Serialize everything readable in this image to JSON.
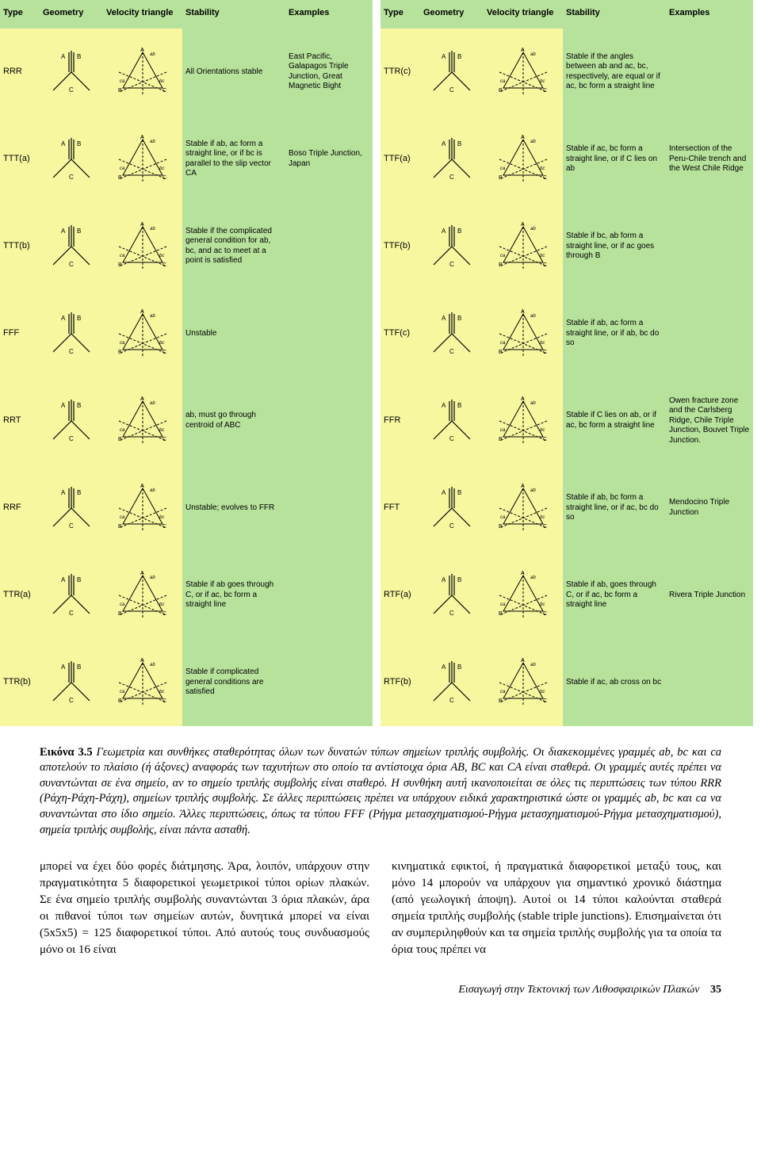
{
  "headers": [
    "Type",
    "Geometry",
    "Velocity triangle",
    "Stability",
    "Examples"
  ],
  "left_rows": [
    {
      "type": "RRR",
      "stability": "All Orientations stable",
      "examples": "East Pacific, Galapagos Triple Junction, Great Magnetic Bight"
    },
    {
      "type": "TTT(a)",
      "stability": "Stable if ab, ac form a straight line, or if bc is parallel to the slip vector CA",
      "examples": "Boso Triple Junction, Japan"
    },
    {
      "type": "TTT(b)",
      "stability": "Stable if the complicated general condition for ab, bc, and ac to meet at a point is satisfied",
      "examples": ""
    },
    {
      "type": "FFF",
      "stability": "Unstable",
      "examples": ""
    },
    {
      "type": "RRT",
      "stability": "ab, must go through centroid of ABC",
      "examples": ""
    },
    {
      "type": "RRF",
      "stability": "Unstable; evolves to FFR",
      "examples": ""
    },
    {
      "type": "TTR(a)",
      "stability": "Stable if ab goes through C, or if ac, bc form a straight line",
      "examples": ""
    },
    {
      "type": "TTR(b)",
      "stability": "Stable if complicated general conditions are satisfied",
      "examples": ""
    }
  ],
  "right_rows": [
    {
      "type": "TTR(c)",
      "stability": "Stable if the angles between ab and ac, bc, respectively, are equal or if ac, bc form a straight line",
      "examples": ""
    },
    {
      "type": "TTF(a)",
      "stability": "Stable if ac, bc form a straight line, or if C lies on ab",
      "examples": "Intersection of the Peru-Chile trench and the West Chile Ridge"
    },
    {
      "type": "TTF(b)",
      "stability": "Stable if bc, ab form a straight line, or if ac goes through B",
      "examples": ""
    },
    {
      "type": "TTF(c)",
      "stability": "Stable if ab, ac form a straight line, or if ab, bc do so",
      "examples": ""
    },
    {
      "type": "FFR",
      "stability": "Stable if C lies on ab, or if ac, bc form a straight line",
      "examples": "Owen fracture zone and the Carlsberg Ridge, Chile Triple Junction, Bouvet Triple Junction."
    },
    {
      "type": "FFT",
      "stability": "Stable if ab, bc form a straight line, or if ac, bc do so",
      "examples": "Mendocino Triple Junction"
    },
    {
      "type": "RTF(a)",
      "stability": "Stable if ab, goes through C, or if ac, bc form a straight line",
      "examples": "Rivera Triple Junction"
    },
    {
      "type": "RTF(b)",
      "stability": "Stable if ac, ab cross on bc",
      "examples": ""
    }
  ],
  "caption": {
    "lead": "Εικόνα 3.5",
    "text": "Γεωμετρία και συνθήκες σταθερότητας όλων των δυνατών τύπων σημείων τριπλής συμβολής. Οι διακεκομμένες γραμμές ab, bc και ca αποτελούν το πλαίσιο (ή άξονες) αναφοράς των ταχυτήτων στο οποίο τα αντίστοιχα όρια AB, BC και CA είναι σταθερά. Οι γραμμές αυτές πρέπει να συναντώνται σε ένα σημείο, αν το σημείο τριπλής συμβολής είναι σταθερό. Η συνθήκη αυτή ικανοποιείται σε όλες τις περιπτώσεις των τύπου RRR (Ράχη-Ράχη-Ράχη), σημείων τριπλής συμβολής. Σε άλλες περιπτώσεις πρέπει να υπάρχουν ειδικά χαρακτηριστικά ώστε οι γραμμές ab, bc και ca να συναντώνται στο ίδιο σημείο. Άλλες περιπτώσεις, όπως τα τύπου FFF (Ρήγμα μετασχηματισμού-Ρήγμα μετασχηματισμού-Ρήγμα μετασχηματισμού), σημεία τριπλής συμβολής, είναι πάντα ασταθή."
  },
  "body": {
    "col1": "μπορεί να έχει δύο φορές διάτμησης. Άρα, λοιπόν, υπάρχουν στην πραγματικότητα 5 διαφορετικοί γεωμετρικοί τύποι ορίων πλακών. Σε ένα σημείο τριπλής συμβολής συναντώνται 3 όρια πλακών, άρα οι πιθανοί τύποι των σημείων αυτών, δυνητικά μπορεί να είναι (5x5x5) = 125 διαφορετικοί τύποι. Από αυτούς τους συνδυασμούς μόνο οι 16 είναι",
    "col2": "κινηματικά εφικτοί, ή πραγματικά διαφορετικοί μεταξύ τους, και μόνο 14 μπορούν να υπάρχουν για σημαντικό χρονικό διάστημα (από γεωλογική άποψη). Αυτοί οι 14 τύποι καλούνται σταθερά σημεία τριπλής συμβολής (stable triple junctions). Επισημαίνεται ότι αν συμπεριληφθούν και τα σημεία τριπλής συμβολής για τα οποία τα όρια τους πρέπει να"
  },
  "footer": {
    "text": "Εισαγωγή στην Τεκτονική των Λιθοσφαιρικών Πλακών",
    "page": "35"
  },
  "colors": {
    "green": "#b7e29c",
    "yellow": "#f7f7a0",
    "black": "#000000"
  }
}
